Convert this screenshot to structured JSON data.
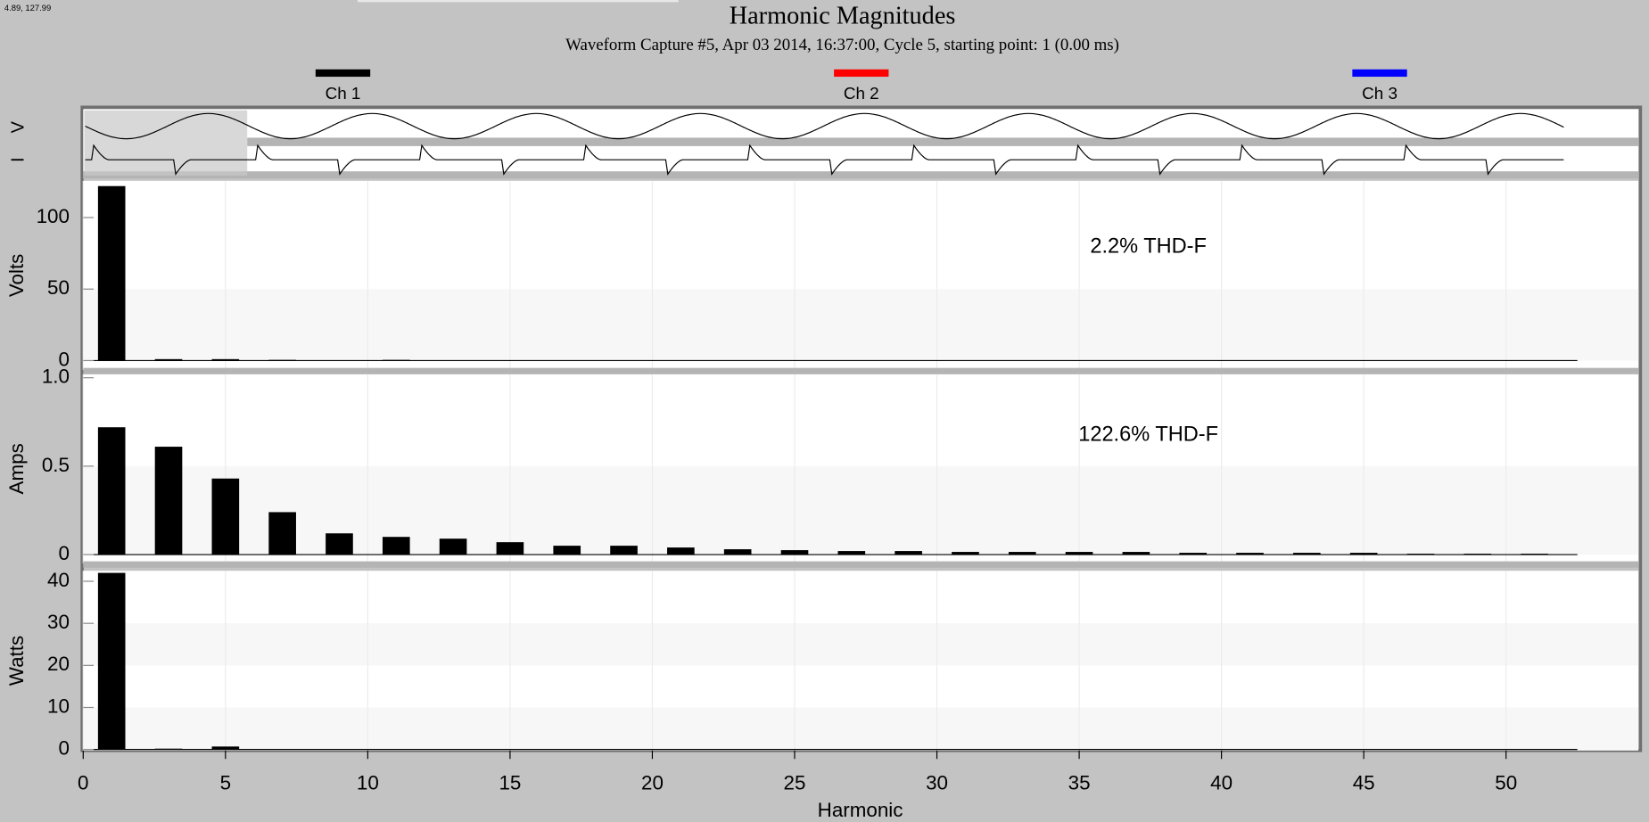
{
  "header": {
    "cursor": "4.89, 127.99",
    "title": "Harmonic Magnitudes",
    "subtitle": "Waveform Capture #5, Apr 03 2014, 16:37:00, Cycle 5,  starting point: 1  (0.00 ms)"
  },
  "legend": [
    {
      "name": "Ch 1",
      "color": "#000000"
    },
    {
      "name": "Ch 2",
      "color": "#ff0000"
    },
    {
      "name": "Ch 3",
      "color": "#0000ff"
    }
  ],
  "waveform_labels": [
    "V",
    "I"
  ],
  "chart_data": [
    {
      "type": "bar",
      "ylabel": "Volts",
      "annotation": "2.2% THD-F",
      "color": "#000000",
      "x": [
        1,
        3,
        5,
        7,
        9,
        11,
        13,
        15,
        17,
        19,
        21,
        23,
        25,
        27,
        29,
        31,
        33,
        35,
        37,
        39,
        41,
        43,
        45,
        47,
        49,
        51
      ],
      "values": [
        122,
        1,
        1,
        0.5,
        0,
        0.5,
        0,
        0,
        0,
        0,
        0,
        0,
        0,
        0,
        0,
        0,
        0,
        0,
        0,
        0,
        0,
        0,
        0,
        0,
        0,
        0
      ],
      "xlim": [
        0,
        54.65
      ],
      "ylim": [
        -6.6,
        125.7
      ],
      "yticks": [
        0,
        50,
        100
      ]
    },
    {
      "type": "bar",
      "ylabel": "Amps",
      "annotation": "122.6% THD-F",
      "color": "#000000",
      "x": [
        1,
        3,
        5,
        7,
        9,
        11,
        13,
        15,
        17,
        19,
        21,
        23,
        25,
        27,
        29,
        31,
        33,
        35,
        37,
        39,
        41,
        43,
        45,
        47,
        49,
        51
      ],
      "values": [
        0.72,
        0.61,
        0.43,
        0.24,
        0.12,
        0.1,
        0.09,
        0.07,
        0.05,
        0.05,
        0.04,
        0.03,
        0.025,
        0.02,
        0.02,
        0.015,
        0.015,
        0.015,
        0.015,
        0.01,
        0.01,
        0.01,
        0.01,
        0.005,
        0.005,
        0.005
      ],
      "xlim": [
        0,
        54.65
      ],
      "ylim": [
        -0.05,
        1.02
      ],
      "yticks": [
        0,
        0.5,
        {
          "value": 1,
          "label": "1.0"
        }
      ]
    },
    {
      "type": "bar",
      "ylabel": "Watts",
      "xlabel": "Harmonic",
      "color": "#000000",
      "x": [
        1,
        3,
        5,
        7,
        9,
        11,
        13,
        15,
        17,
        19,
        21,
        23,
        25,
        27,
        29,
        31,
        33,
        35,
        37,
        39,
        41,
        43,
        45,
        47,
        49,
        51
      ],
      "values": [
        42,
        0.2,
        0.7,
        0,
        0,
        0,
        0,
        0,
        0,
        0,
        0,
        0,
        0,
        0,
        0,
        0,
        0,
        0,
        0,
        0,
        0,
        0,
        0,
        0,
        0,
        0
      ],
      "xlim": [
        0,
        54.65
      ],
      "ylim": [
        -0.25,
        42.5
      ],
      "yticks": [
        0,
        10,
        20,
        30,
        40
      ],
      "xticks": [
        0,
        5,
        10,
        15,
        20,
        25,
        30,
        35,
        40,
        45,
        50
      ]
    }
  ]
}
